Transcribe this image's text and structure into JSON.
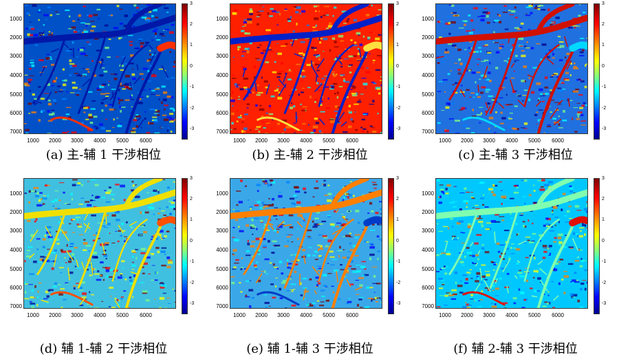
{
  "y_ticks": [
    "1000",
    "2000",
    "3000",
    "4000",
    "5000",
    "6000",
    "7000"
  ],
  "x_ticks": [
    "1000",
    "2000",
    "3000",
    "4000",
    "5000",
    "6000"
  ],
  "colorbar_ticks": [
    "3",
    "2",
    "1",
    "0",
    "-1",
    "-2",
    "-3"
  ],
  "colormap": [
    "#00008f",
    "#0000ff",
    "#0080ff",
    "#00ffff",
    "#80ff80",
    "#ffff00",
    "#ff8000",
    "#ff0000",
    "#7f0000"
  ],
  "panels": [
    {
      "caption": "(a)  主-辅 1 干涉相位",
      "base_color": "#0050c8",
      "river_color": "#0018a8",
      "accent_color": "#ff3000"
    },
    {
      "caption": "(b)  主-辅 2 干涉相位",
      "base_color": "#ff2000",
      "river_color": "#0020c8",
      "accent_color": "#ffe040"
    },
    {
      "caption": "(c)  主-辅 3 干涉相位",
      "base_color": "#2070e0",
      "river_color": "#d01000",
      "accent_color": "#00d8ff"
    },
    {
      "caption": "(d)  辅 1-辅 2 干涉相位",
      "base_color": "#40c0e0",
      "river_color": "#f0e000",
      "accent_color": "#ff5000"
    },
    {
      "caption": "(e)  辅 1-辅 3 干涉相位",
      "base_color": "#3aa8e8",
      "river_color": "#ff8000",
      "accent_color": "#003cc8"
    },
    {
      "caption": "(f)  辅 2-辅 3 干涉相位",
      "base_color": "#00c8ff",
      "river_color": "#80ffb0",
      "accent_color": "#e01000"
    }
  ]
}
